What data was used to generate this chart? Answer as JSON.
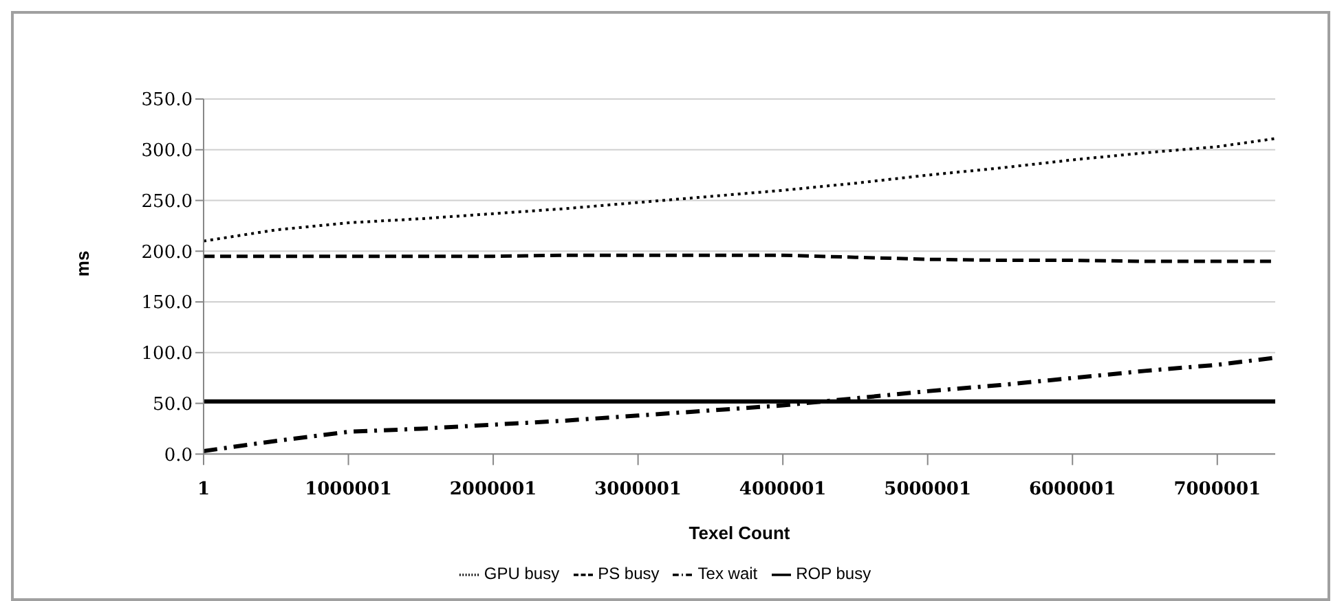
{
  "chart_data": {
    "type": "line",
    "xlabel": "Texel Count",
    "ylabel": "ms",
    "x": [
      1,
      500001,
      1000001,
      1500001,
      2000001,
      2500001,
      3000001,
      3500001,
      4000001,
      4500001,
      5000001,
      5500001,
      6000001,
      6500001,
      7000001,
      7400001
    ],
    "series": [
      {
        "name": "GPU busy",
        "color": "#000000",
        "line_style": "dotted",
        "values": [
          210,
          221,
          228,
          232,
          237,
          242,
          248,
          254,
          260,
          267,
          275,
          282,
          290,
          297,
          303,
          311
        ]
      },
      {
        "name": "PS busy",
        "color": "#000000",
        "line_style": "dashed",
        "values": [
          195,
          195,
          195,
          195,
          195,
          196,
          196,
          196,
          196,
          194,
          192,
          191,
          191,
          190,
          190,
          190
        ]
      },
      {
        "name": "Tex wait",
        "color": "#000000",
        "line_style": "dashdot",
        "values": [
          3,
          13,
          22,
          25,
          29,
          33,
          38,
          43,
          48,
          55,
          62,
          68,
          75,
          82,
          88,
          95
        ]
      },
      {
        "name": "ROP busy",
        "color": "#000000",
        "line_style": "solid",
        "values": [
          52,
          52,
          52,
          52,
          52,
          52,
          52,
          52,
          52,
          52,
          52,
          52,
          52,
          52,
          52,
          52
        ]
      }
    ],
    "xlim": [
      1,
      7400001
    ],
    "xticks": [
      1,
      1000001,
      2000001,
      3000001,
      4000001,
      5000001,
      6000001,
      7000001
    ],
    "ylim": [
      0,
      350
    ],
    "yticks": [
      {
        "value": 0,
        "label": "0.0"
      },
      {
        "value": 50,
        "label": "50.0"
      },
      {
        "value": 100,
        "label": "100.0"
      },
      {
        "value": 150,
        "label": "150.0"
      },
      {
        "value": 200,
        "label": "200.0"
      },
      {
        "value": 250,
        "label": "250.0"
      },
      {
        "value": 300,
        "label": "300.0"
      },
      {
        "value": 350,
        "label": "350.0"
      }
    ],
    "grid": "y",
    "legend": "bottom",
    "marker": "none"
  }
}
